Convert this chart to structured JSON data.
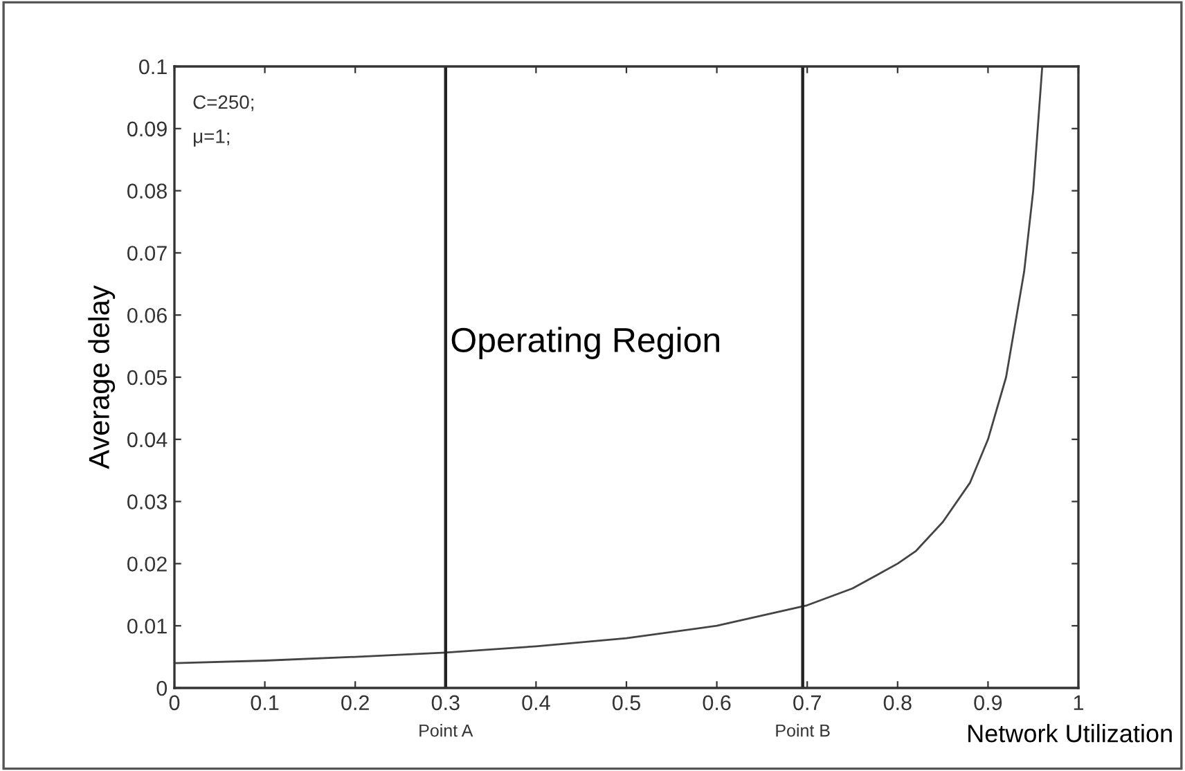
{
  "chart_data": {
    "type": "line",
    "xlabel": "Network Utilization",
    "ylabel": "Average delay",
    "x": [
      0,
      0.1,
      0.2,
      0.3,
      0.4,
      0.5,
      0.6,
      0.7,
      0.75,
      0.8,
      0.82,
      0.85,
      0.88,
      0.9,
      0.92,
      0.94,
      0.95,
      0.96
    ],
    "series": [
      {
        "color": "#444444",
        "values": [
          0.004,
          0.0044,
          0.005,
          0.0057,
          0.0067,
          0.008,
          0.01,
          0.0133,
          0.016,
          0.02,
          0.022,
          0.0267,
          0.033,
          0.04,
          0.05,
          0.067,
          0.08,
          0.1
        ]
      }
    ],
    "xlim": [
      0,
      1
    ],
    "ylim": [
      0,
      0.1
    ],
    "xticks": [
      0,
      0.1,
      0.2,
      0.3,
      0.4,
      0.5,
      0.6,
      0.7,
      0.8,
      0.9,
      1
    ],
    "yticks": [
      0,
      0.01,
      0.02,
      0.03,
      0.04,
      0.05,
      0.06,
      0.07,
      0.08,
      0.09,
      0.1
    ],
    "ref_lines": [
      {
        "axis": "x",
        "value": 0.3,
        "label": "Point A",
        "color": "#222222"
      },
      {
        "axis": "x",
        "value": 0.695,
        "label": "Point B",
        "color": "#222222"
      }
    ],
    "annotations": [
      "C=250;",
      "μ=1;",
      "Operating Region"
    ],
    "grid": false,
    "legend": false,
    "marker": "none",
    "line_style": "solid"
  }
}
